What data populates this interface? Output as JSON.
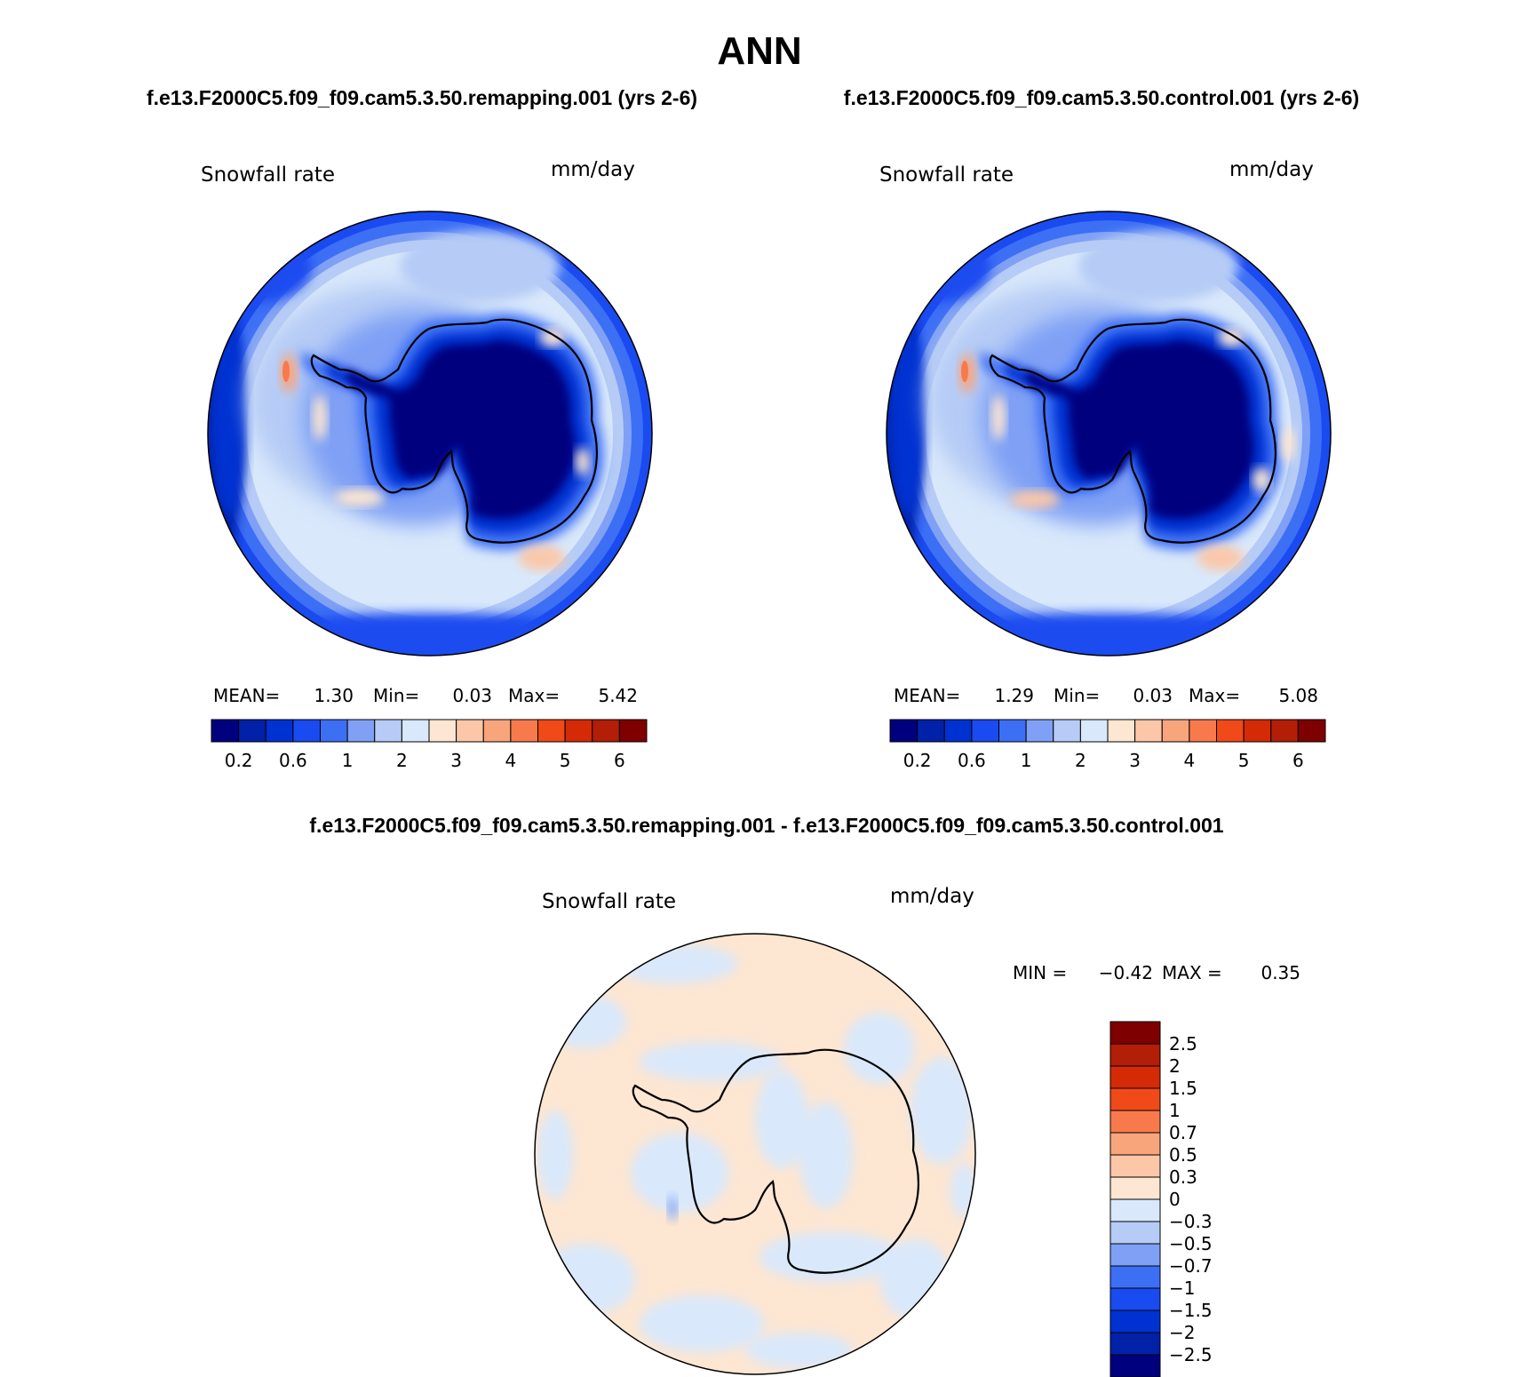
{
  "figure": {
    "title": "ANN",
    "colors": {
      "abs_scale": [
        "#00007f",
        "#0021a8",
        "#0032d2",
        "#1a4bf0",
        "#3d6ff5",
        "#7fa0f5",
        "#b6ccf6",
        "#d9e8fb",
        "#fde6d2",
        "#fbc7a8",
        "#f9a57c",
        "#f87a4c",
        "#ef4a18",
        "#d42b06",
        "#b21e06",
        "#7f0000"
      ],
      "diff_scale": [
        "#00007f",
        "#0021a8",
        "#0032d2",
        "#1a4bf0",
        "#3d6ff5",
        "#7fa0f5",
        "#b6ccf6",
        "#d9e8fb",
        "#fde6d2",
        "#fbc7a8",
        "#f9a57c",
        "#f87a4c",
        "#ef4a18",
        "#d42b06",
        "#b21e06",
        "#7f0000"
      ],
      "outline": "#000000"
    }
  },
  "panels": [
    {
      "case": "f.e13.F2000C5.f09_f09.cam5.3.50.remapping.001 (yrs 2-6)",
      "variable": "Snowfall rate",
      "units": "mm/day",
      "stats": {
        "mean_label": "MEAN=",
        "mean": "1.30",
        "min_label": "Min=",
        "min": "0.03",
        "max_label": "Max=",
        "max": "5.42"
      },
      "colorbar_ticks": [
        "0.2",
        "0.6",
        "1",
        "2",
        "3",
        "4",
        "5",
        "6"
      ]
    },
    {
      "case": "f.e13.F2000C5.f09_f09.cam5.3.50.control.001 (yrs 2-6)",
      "variable": "Snowfall rate",
      "units": "mm/day",
      "stats": {
        "mean_label": "MEAN=",
        "mean": "1.29",
        "min_label": "Min=",
        "min": "0.03",
        "max_label": "Max=",
        "max": "5.08"
      },
      "colorbar_ticks": [
        "0.2",
        "0.6",
        "1",
        "2",
        "3",
        "4",
        "5",
        "6"
      ]
    }
  ],
  "difference": {
    "title": "f.e13.F2000C5.f09_f09.cam5.3.50.remapping.001 - f.e13.F2000C5.f09_f09.cam5.3.50.control.001",
    "variable": "Snowfall rate",
    "units": "mm/day",
    "stats": {
      "min_label": "MIN =",
      "min": "−0.42",
      "max_label": "MAX =",
      "max": "0.35"
    },
    "colorbar_ticks": [
      "2.5",
      "2",
      "1.5",
      "1",
      "0.7",
      "0.5",
      "0.3",
      "0",
      "−0.3",
      "−0.5",
      "−0.7",
      "−1",
      "−1.5",
      "−2",
      "−2.5"
    ]
  }
}
